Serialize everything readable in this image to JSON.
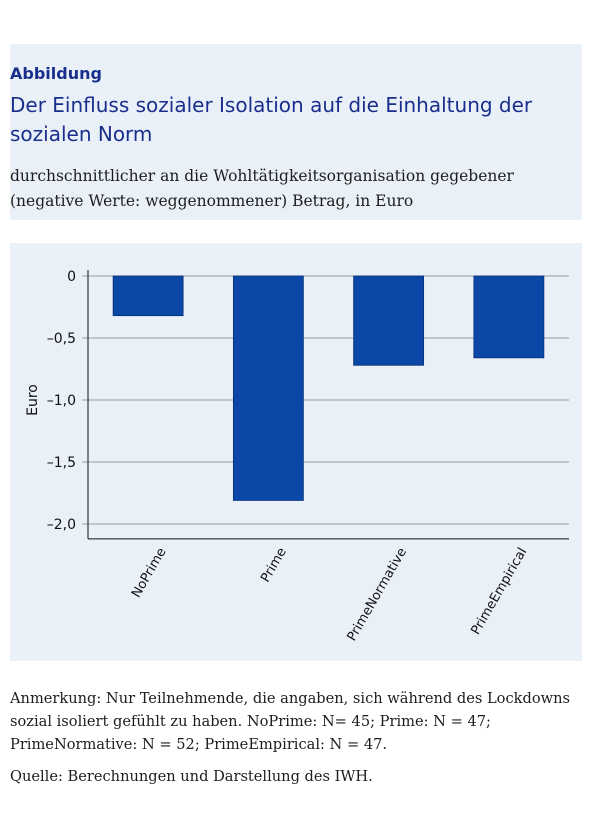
{
  "header": {
    "label": "Abbildung",
    "title": "Der Einfluss sozialer Isolation auf die Einhaltung der sozialen Norm",
    "subtitle": "durchschnittlicher an die Wohltätigkeitsorganisation gegebener (negative Werte: weggenommener) Betrag, in Euro"
  },
  "chart_data": {
    "type": "bar",
    "categories": [
      "NoPrime",
      "Prime",
      "PrimeNormative",
      "PrimeEmpirical"
    ],
    "values": [
      -0.32,
      -1.81,
      -0.72,
      -0.66
    ],
    "ylabel": "Euro",
    "ylim": [
      -2.1,
      0.1
    ],
    "yticks": [
      0,
      -0.5,
      -1.0,
      -1.5,
      -2.0
    ],
    "ytick_labels": [
      "0",
      "–0,5",
      "–1,0",
      "–1,5",
      "–2,0"
    ],
    "grid": true,
    "bar_color": "#0a47a6"
  },
  "footer": {
    "note": "Anmerkung: Nur Teilnehmende, die angaben, sich während des Lockdowns sozial isoliert gefühlt zu haben. NoPrime: N= 45; Prime: N = 47; PrimeNormative: N = 52; PrimeEmpirical: N = 47.",
    "source": "Quelle: Berechnungen und Darstellung des IWH."
  }
}
